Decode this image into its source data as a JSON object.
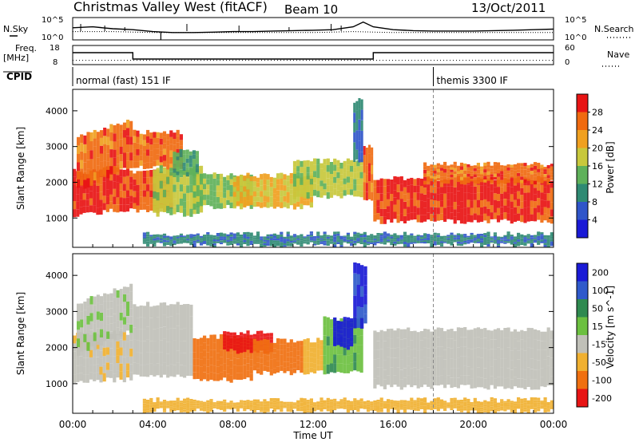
{
  "header": {
    "title": "Christmas Valley West (fitACF)",
    "beam": "Beam 10",
    "date": "13/Oct/2011"
  },
  "chart_data": [
    {
      "panel": "noise",
      "type": "line",
      "left_label": "N.Sky",
      "right_label": "N.Search",
      "left_ticks": [
        "10^5",
        "10^0"
      ],
      "right_ticks": [
        "10^5",
        "10^0"
      ],
      "series": [
        {
          "name": "N.Sky",
          "style": "solid",
          "x": [
            0,
            1,
            2,
            3,
            4,
            5,
            6,
            7,
            8,
            9,
            10,
            11,
            12,
            13,
            14,
            14.5,
            15,
            16,
            17,
            18,
            19,
            20,
            21,
            22,
            23,
            24
          ],
          "y": [
            0.55,
            0.6,
            0.5,
            0.45,
            0.35,
            0.3,
            0.3,
            0.32,
            0.35,
            0.35,
            0.38,
            0.4,
            0.42,
            0.45,
            0.6,
            0.85,
            0.6,
            0.45,
            0.4,
            0.38,
            0.38,
            0.38,
            0.4,
            0.42,
            0.45,
            0.48
          ]
        },
        {
          "name": "N.Search",
          "style": "dotted",
          "x": [
            0,
            2,
            4,
            6,
            8,
            10,
            12,
            14,
            16,
            18,
            20,
            22,
            24
          ],
          "y": [
            0.35,
            0.35,
            0.3,
            0.3,
            0.3,
            0.3,
            0.3,
            0.35,
            0.3,
            0.3,
            0.3,
            0.3,
            0.3
          ]
        }
      ]
    },
    {
      "panel": "frequency",
      "type": "line",
      "left_label_1": "Freq.",
      "left_label_2": "[MHz]",
      "right_label": "Nave",
      "left_ticks": [
        "18",
        "8"
      ],
      "right_ticks": [
        "60",
        "0"
      ],
      "freq_steps": [
        {
          "from": 0,
          "to": 3.0,
          "value": 14.5
        },
        {
          "from": 3.0,
          "to": 15.0,
          "value": 10.5
        },
        {
          "from": 15.0,
          "to": 24,
          "value": 14.5
        }
      ],
      "nave_value": 10
    },
    {
      "panel": "cpid",
      "label": "CPID",
      "segments": [
        {
          "from": 0,
          "to": 18.0,
          "text": "normal (fast) 151 IF"
        },
        {
          "from": 18.0,
          "to": 24,
          "text": "themis 3300 IF"
        }
      ]
    },
    {
      "panel": "power",
      "type": "heatmap",
      "ylabel": "Slant Range [km]",
      "ylim": [
        180,
        4600
      ],
      "yticks": [
        1000,
        2000,
        3000,
        4000
      ],
      "xlim": [
        0,
        24
      ],
      "colorbar": {
        "label": "Power [dB]",
        "range": [
          0,
          32
        ],
        "ticks": [
          4,
          8,
          12,
          16,
          20,
          24,
          28
        ],
        "colors": [
          "#1a1ad6",
          "#2f55c9",
          "#2f8a73",
          "#5fb15a",
          "#c8c83c",
          "#f0a020",
          "#f06a10",
          "#e81414"
        ]
      },
      "regions": [
        {
          "t0": 0.0,
          "t1": 1.5,
          "r0": 1100,
          "r1": 2300,
          "v": 30
        },
        {
          "t0": 1.5,
          "t1": 3.0,
          "r0": 1200,
          "r1": 2400,
          "v": 28
        },
        {
          "t0": 0.2,
          "t1": 3.0,
          "r0": 1800,
          "r1": 3800,
          "v": 26,
          "slope": 700
        },
        {
          "t0": 3.0,
          "t1": 5.0,
          "r0": 1200,
          "r1": 2300,
          "v": 27
        },
        {
          "t0": 3.0,
          "t1": 5.5,
          "r0": 2400,
          "r1": 3400,
          "v": 26
        },
        {
          "t0": 4.0,
          "t1": 6.5,
          "r0": 1100,
          "r1": 2400,
          "v": 17
        },
        {
          "t0": 5.0,
          "t1": 6.3,
          "r0": 2200,
          "r1": 2900,
          "v": 13
        },
        {
          "t0": 6.0,
          "t1": 9.0,
          "r0": 1300,
          "r1": 2200,
          "v": 15
        },
        {
          "t0": 8.0,
          "t1": 12.0,
          "r0": 1300,
          "r1": 2200,
          "v": 20
        },
        {
          "t0": 11.0,
          "t1": 14.5,
          "r0": 1600,
          "r1": 2600,
          "v": 17
        },
        {
          "t0": 14.5,
          "t1": 15.0,
          "r0": 1500,
          "r1": 3000,
          "v": 26
        },
        {
          "t0": 15.0,
          "t1": 24.0,
          "r0": 900,
          "r1": 2100,
          "v": 29
        },
        {
          "t0": 17.5,
          "t1": 24.0,
          "r0": 2000,
          "r1": 2500,
          "v": 26
        },
        {
          "t0": 3.5,
          "t1": 24.0,
          "r0": 250,
          "r1": 550,
          "v": 9
        },
        {
          "t0": 14.0,
          "t1": 14.5,
          "r0": 2600,
          "r1": 4300,
          "v": 8
        }
      ]
    },
    {
      "panel": "velocity",
      "type": "heatmap",
      "ylabel": "Slant Range [km]",
      "xlabel": "Time UT",
      "ylim": [
        180,
        4600
      ],
      "yticks": [
        1000,
        2000,
        3000,
        4000
      ],
      "xlim": [
        0,
        24
      ],
      "xticks": [
        "00:00",
        "04:00",
        "08:00",
        "12:00",
        "16:00",
        "20:00",
        "00:00"
      ],
      "colorbar": {
        "label": "Velocity [m s^-1]",
        "ticks": [
          "200",
          "100",
          "50",
          "15",
          "-15",
          "-50",
          "-100",
          "-200"
        ],
        "colors": [
          "#1a1ad6",
          "#2f5acb",
          "#2f8a50",
          "#6cc040",
          "#c0c0b8",
          "#f0b030",
          "#f07010",
          "#e81414"
        ]
      },
      "regions": [
        {
          "t0": 0.0,
          "t1": 3.0,
          "r0": 1100,
          "r1": 2400,
          "v": -5
        },
        {
          "t0": 0.2,
          "t1": 3.0,
          "r0": 1800,
          "r1": 3800,
          "v": 5,
          "slope": 700
        },
        {
          "t0": 3.0,
          "t1": 6.0,
          "r0": 1200,
          "r1": 3200,
          "v": 0
        },
        {
          "t0": 6.0,
          "t1": 9.0,
          "r0": 1100,
          "r1": 2300,
          "v": -70
        },
        {
          "t0": 7.5,
          "t1": 10.0,
          "r0": 1900,
          "r1": 2400,
          "v": -180
        },
        {
          "t0": 9.0,
          "t1": 11.5,
          "r0": 1300,
          "r1": 2200,
          "v": -80
        },
        {
          "t0": 11.5,
          "t1": 12.5,
          "r0": 1300,
          "r1": 2200,
          "v": -30
        },
        {
          "t0": 12.5,
          "t1": 14.5,
          "r0": 1300,
          "r1": 2800,
          "v": 40
        },
        {
          "t0": 13.0,
          "t1": 14.0,
          "r0": 2000,
          "r1": 2800,
          "v": 220
        },
        {
          "t0": 14.0,
          "t1": 14.7,
          "r0": 2600,
          "r1": 4300,
          "v": 200
        },
        {
          "t0": 15.0,
          "t1": 24.0,
          "r0": 900,
          "r1": 2500,
          "v": 0
        },
        {
          "t0": 3.5,
          "t1": 24.0,
          "r0": 250,
          "r1": 550,
          "v": -30
        }
      ]
    }
  ]
}
